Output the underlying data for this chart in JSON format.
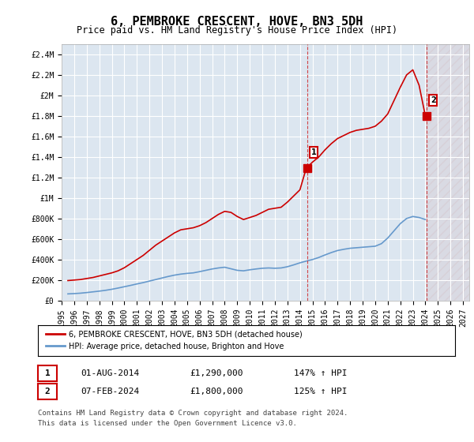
{
  "title": "6, PEMBROKE CRESCENT, HOVE, BN3 5DH",
  "subtitle": "Price paid vs. HM Land Registry's House Price Index (HPI)",
  "legend_label_red": "6, PEMBROKE CRESCENT, HOVE, BN3 5DH (detached house)",
  "legend_label_blue": "HPI: Average price, detached house, Brighton and Hove",
  "annotation1_label": "1",
  "annotation1_date": "01-AUG-2014",
  "annotation1_price": "£1,290,000",
  "annotation1_hpi": "147% ↑ HPI",
  "annotation2_label": "2",
  "annotation2_date": "07-FEB-2024",
  "annotation2_price": "£1,800,000",
  "annotation2_hpi": "125% ↑ HPI",
  "footnote1": "Contains HM Land Registry data © Crown copyright and database right 2024.",
  "footnote2": "This data is licensed under the Open Government Licence v3.0.",
  "ylim": [
    0,
    2500000
  ],
  "yticks": [
    0,
    200000,
    400000,
    600000,
    800000,
    1000000,
    1200000,
    1400000,
    1600000,
    1800000,
    2000000,
    2200000,
    2400000
  ],
  "ytick_labels": [
    "£0",
    "£200K",
    "£400K",
    "£600K",
    "£800K",
    "£1M",
    "£1.2M",
    "£1.4M",
    "£1.6M",
    "£1.8M",
    "£2M",
    "£2.2M",
    "£2.4M"
  ],
  "red_color": "#cc0000",
  "blue_color": "#6699cc",
  "background_plot": "#dce6f0",
  "background_fig": "#ffffff",
  "grid_color": "#ffffff",
  "hatch_color": "#cc9999",
  "red_x": [
    1995.5,
    1996.0,
    1996.5,
    1997.0,
    1997.5,
    1998.0,
    1998.5,
    1999.0,
    1999.5,
    2000.0,
    2000.5,
    2001.0,
    2001.5,
    2002.0,
    2002.5,
    2003.0,
    2003.5,
    2004.0,
    2004.5,
    2005.0,
    2005.5,
    2006.0,
    2006.5,
    2007.0,
    2007.5,
    2008.0,
    2008.5,
    2009.0,
    2009.5,
    2010.0,
    2010.5,
    2011.0,
    2011.5,
    2012.0,
    2012.5,
    2013.0,
    2013.5,
    2014.0,
    2014.5,
    2015.0,
    2015.5,
    2016.0,
    2016.5,
    2017.0,
    2017.5,
    2018.0,
    2018.5,
    2019.0,
    2019.5,
    2020.0,
    2020.5,
    2021.0,
    2021.5,
    2022.0,
    2022.5,
    2023.0,
    2023.5,
    2024.0
  ],
  "red_y": [
    195000,
    200000,
    205000,
    215000,
    225000,
    240000,
    255000,
    270000,
    290000,
    320000,
    360000,
    400000,
    440000,
    490000,
    540000,
    580000,
    620000,
    660000,
    690000,
    700000,
    710000,
    730000,
    760000,
    800000,
    840000,
    870000,
    860000,
    820000,
    790000,
    810000,
    830000,
    860000,
    890000,
    900000,
    910000,
    960000,
    1020000,
    1080000,
    1290000,
    1350000,
    1400000,
    1470000,
    1530000,
    1580000,
    1610000,
    1640000,
    1660000,
    1670000,
    1680000,
    1700000,
    1750000,
    1820000,
    1950000,
    2080000,
    2200000,
    2250000,
    2100000,
    1800000
  ],
  "blue_x": [
    1995.5,
    1996.0,
    1996.5,
    1997.0,
    1997.5,
    1998.0,
    1998.5,
    1999.0,
    1999.5,
    2000.0,
    2000.5,
    2001.0,
    2001.5,
    2002.0,
    2002.5,
    2003.0,
    2003.5,
    2004.0,
    2004.5,
    2005.0,
    2005.5,
    2006.0,
    2006.5,
    2007.0,
    2007.5,
    2008.0,
    2008.5,
    2009.0,
    2009.5,
    2010.0,
    2010.5,
    2011.0,
    2011.5,
    2012.0,
    2012.5,
    2013.0,
    2013.5,
    2014.0,
    2014.5,
    2015.0,
    2015.5,
    2016.0,
    2016.5,
    2017.0,
    2017.5,
    2018.0,
    2018.5,
    2019.0,
    2019.5,
    2020.0,
    2020.5,
    2021.0,
    2021.5,
    2022.0,
    2022.5,
    2023.0,
    2023.5,
    2024.0
  ],
  "blue_y": [
    65000,
    68000,
    72000,
    78000,
    85000,
    92000,
    100000,
    110000,
    122000,
    135000,
    148000,
    162000,
    175000,
    190000,
    205000,
    220000,
    235000,
    248000,
    258000,
    265000,
    270000,
    282000,
    295000,
    308000,
    318000,
    325000,
    310000,
    295000,
    290000,
    300000,
    308000,
    315000,
    318000,
    315000,
    318000,
    330000,
    348000,
    368000,
    385000,
    400000,
    420000,
    445000,
    468000,
    488000,
    500000,
    510000,
    515000,
    520000,
    525000,
    530000,
    555000,
    610000,
    680000,
    750000,
    800000,
    820000,
    810000,
    790000
  ],
  "point1_x": 2014.583,
  "point1_y": 1290000,
  "point2_x": 2024.1,
  "point2_y": 1800000,
  "hatch_x_start": 2024.0,
  "xlim": [
    1995.0,
    2027.5
  ],
  "xticks": [
    1995,
    1996,
    1997,
    1998,
    1999,
    2000,
    2001,
    2002,
    2003,
    2004,
    2005,
    2006,
    2007,
    2008,
    2009,
    2010,
    2011,
    2012,
    2013,
    2014,
    2015,
    2016,
    2017,
    2018,
    2019,
    2020,
    2021,
    2022,
    2023,
    2024,
    2025,
    2026,
    2027
  ]
}
